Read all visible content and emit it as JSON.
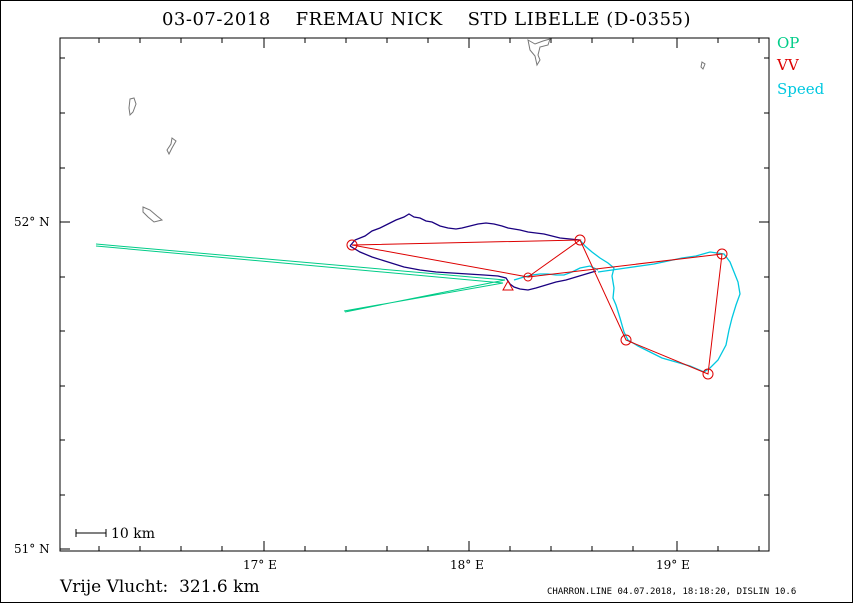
{
  "title": "03-07-2018    FREMAU NICK    STD LIBELLE (D-0355)",
  "legend": [
    {
      "label": "OP",
      "color": "#00cc88"
    },
    {
      "label": "VV",
      "color": "#dd0000"
    },
    {
      "label": "Speed",
      "color": "#00c8e0"
    }
  ],
  "axes": {
    "y_labels": [
      "52° N",
      "51° N"
    ],
    "x_labels": [
      "17° E",
      "18° E",
      "19° E"
    ]
  },
  "scale_bar": "10 km",
  "footer_left": "Vrije Vlucht:  321.6 km",
  "footer_right": "CHARRON.LINE 04.07.2018, 18:18:20, DISLIN 10.6",
  "colors": {
    "track_dark": "#1a0080",
    "track_cyan": "#00c8e0",
    "task_line": "#dd0000",
    "op_line": "#00cc88",
    "coast": "#777777"
  }
}
